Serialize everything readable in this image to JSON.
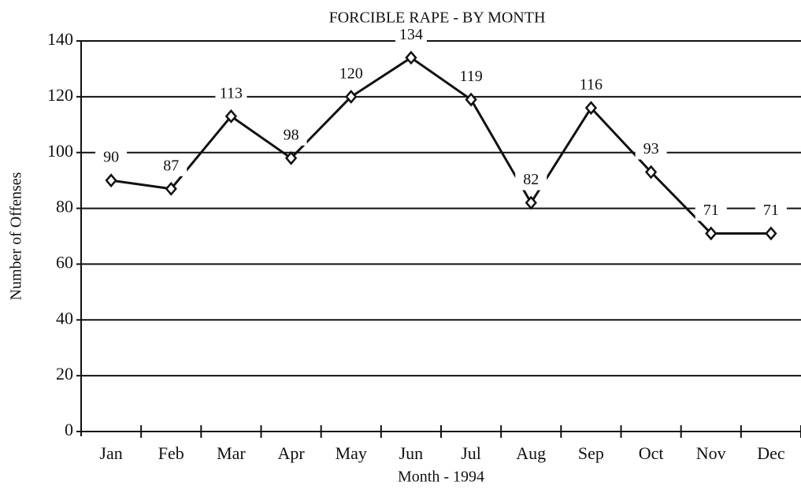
{
  "chart_data": {
    "type": "line",
    "title": "FORCIBLE RAPE - BY MONTH",
    "x_label": "Month - 1994",
    "y_label": "Number of Offenses",
    "categories": [
      "Jan",
      "Feb",
      "Mar",
      "Apr",
      "May",
      "Jun",
      "Jul",
      "Aug",
      "Sep",
      "Oct",
      "Nov",
      "Dec"
    ],
    "values": [
      90,
      87,
      113,
      98,
      120,
      134,
      119,
      82,
      116,
      93,
      71,
      71
    ],
    "color": "#111111",
    "ylim": [
      0,
      140
    ],
    "yticks": [
      0,
      20,
      40,
      60,
      80,
      100,
      120,
      140
    ],
    "grid": true
  }
}
